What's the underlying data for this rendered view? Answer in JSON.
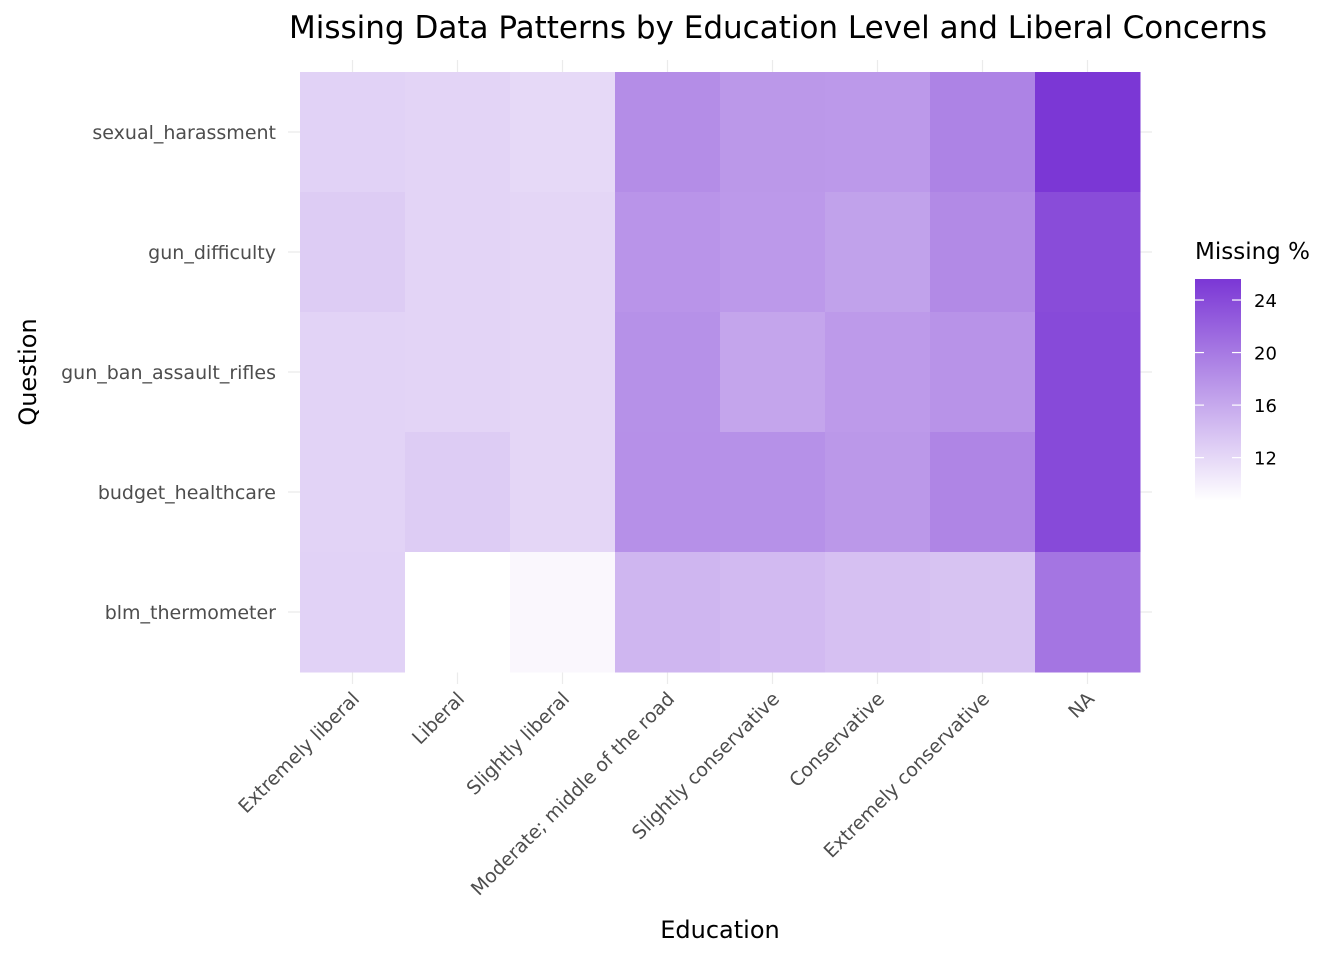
{
  "chart_data": {
    "type": "heatmap",
    "title": "Missing Data Patterns by Education Level and Liberal Concerns",
    "xlabel": "Education",
    "ylabel": "Question",
    "x": [
      "Extremely liberal",
      "Liberal",
      "Slightly liberal",
      "Moderate; middle of the road",
      "Slightly conservative",
      "Conservative",
      "Extremely conservative",
      "NA"
    ],
    "y": [
      "sexual_harassment",
      "gun_difficulty",
      "gun_ban_assault_rifles",
      "budget_healthcare",
      "blm_thermometer"
    ],
    "values": [
      [
        12.5,
        12.3,
        11.9,
        18.3,
        17.4,
        17.3,
        19.2,
        25.6
      ],
      [
        13.0,
        12.3,
        12.2,
        17.7,
        17.3,
        16.6,
        18.6,
        23.8
      ],
      [
        12.4,
        12.3,
        12.2,
        18.0,
        16.3,
        17.2,
        17.8,
        24.0
      ],
      [
        12.4,
        13.0,
        12.2,
        18.1,
        18.0,
        17.4,
        19.0,
        24.0
      ],
      [
        12.5,
        8.7,
        9.4,
        14.9,
        14.5,
        14.0,
        13.8,
        20.4
      ]
    ],
    "legend": {
      "title": "Missing %",
      "ticks": [
        "24",
        "20",
        "16",
        "12"
      ],
      "tick_values": [
        24,
        20,
        16,
        12
      ],
      "range": [
        8.7,
        25.6
      ],
      "low_color": "#ffffff",
      "high_color": "#7b37d5",
      "placement": "right"
    },
    "grid": true
  }
}
